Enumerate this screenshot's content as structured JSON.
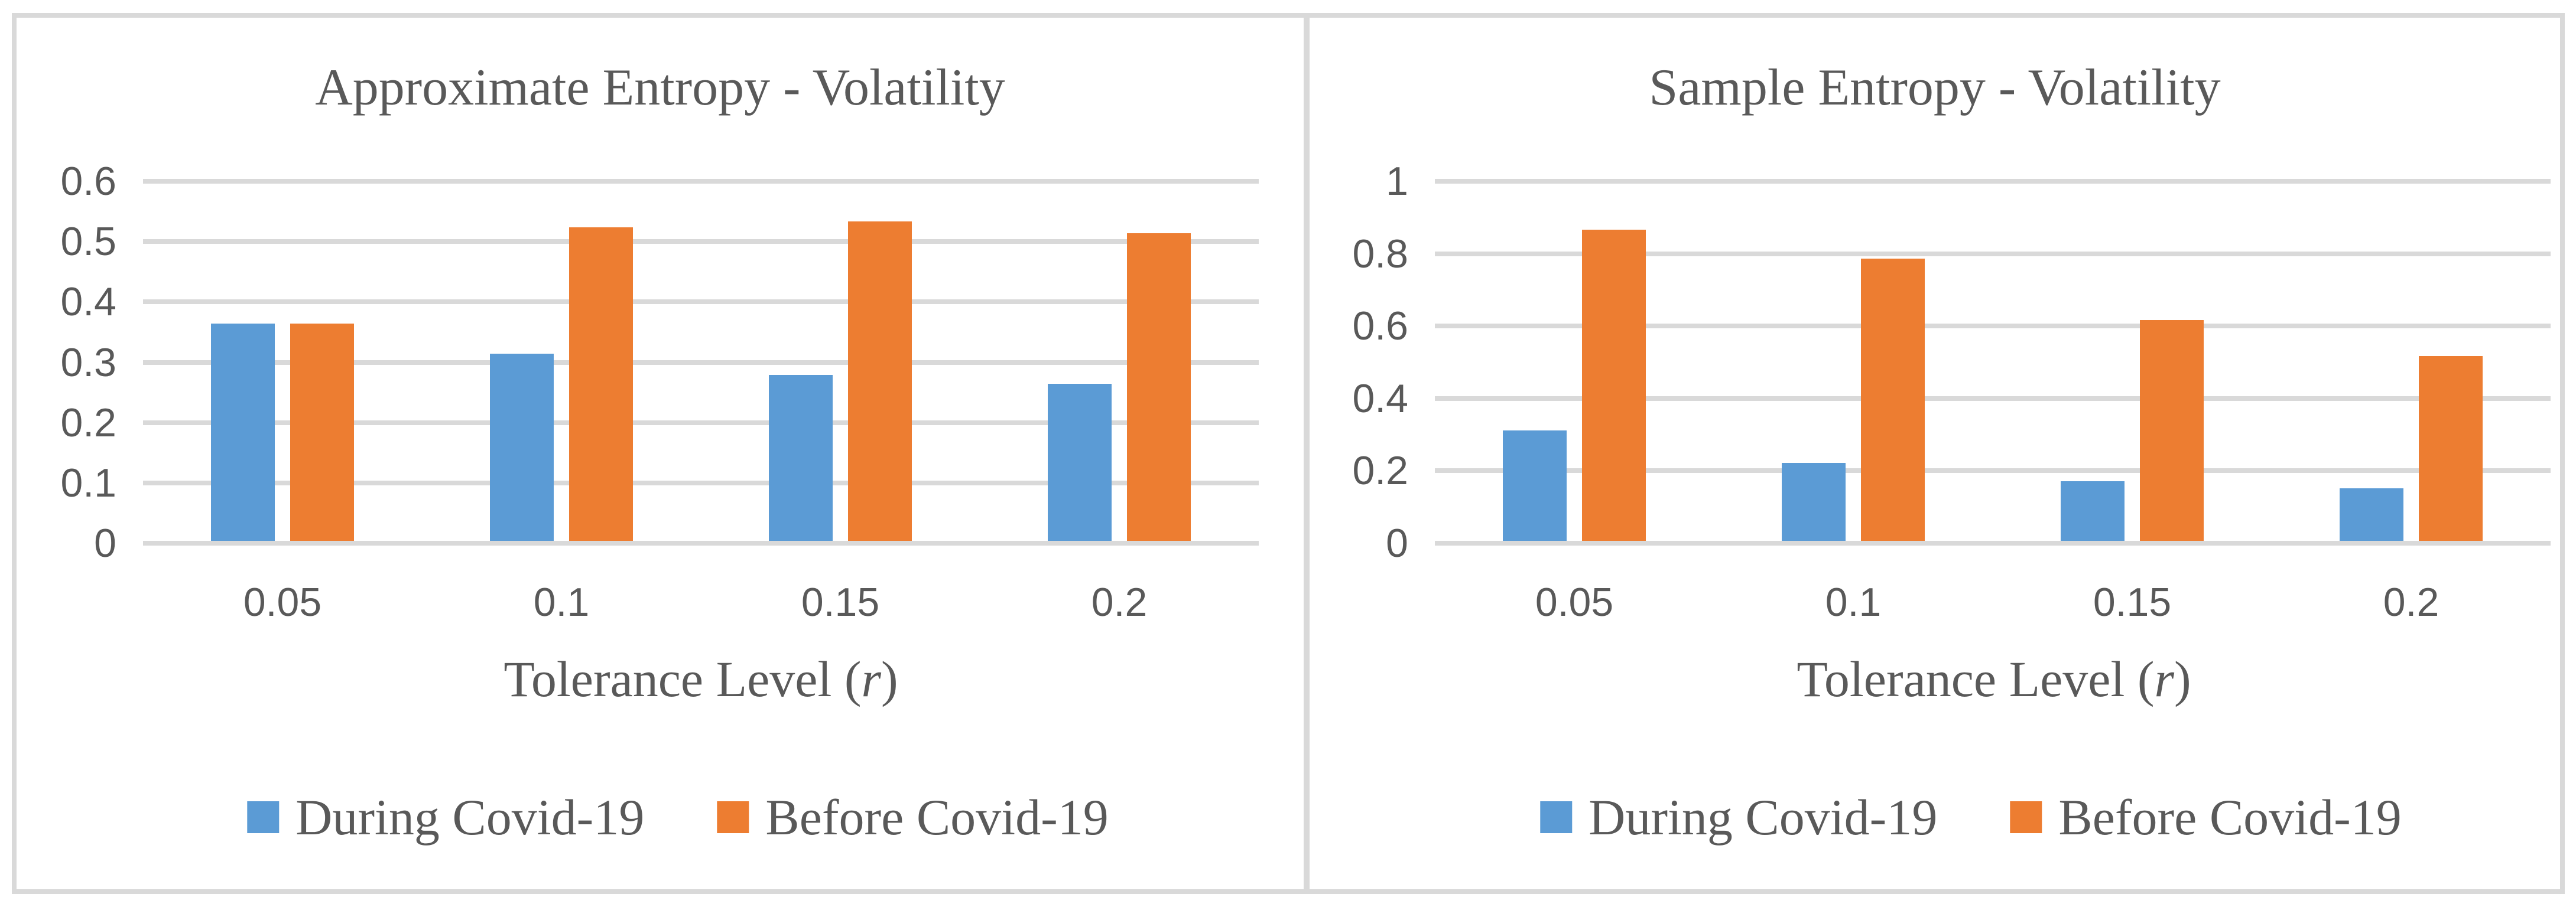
{
  "figure": {
    "colors": {
      "series_blue": "#5B9BD5",
      "series_orange": "#ED7D31",
      "text": "#595959",
      "grid": "#D9D9D9"
    }
  },
  "chart_data": [
    {
      "type": "bar",
      "title": "Approximate Entropy - Volatility",
      "categories": [
        "0.05",
        "0.1",
        "0.15",
        "0.2"
      ],
      "series": [
        {
          "name": "During Covid-19",
          "color_key": "series_blue",
          "values": [
            0.36,
            0.31,
            0.275,
            0.26
          ]
        },
        {
          "name": "Before Covid-19",
          "color_key": "series_orange",
          "values": [
            0.36,
            0.52,
            0.53,
            0.51
          ]
        }
      ],
      "xlabel": "Tolerance Level (r)",
      "xlabel_parts": {
        "pre": "Tolerance Level (",
        "var": "r",
        "post": ")"
      },
      "ylabel": "",
      "ylim": [
        0,
        0.6
      ],
      "yticks": [
        "0",
        "0.1",
        "0.2",
        "0.3",
        "0.4",
        "0.5",
        "0.6"
      ],
      "grid": true,
      "legend_position": "bottom"
    },
    {
      "type": "bar",
      "title": "Sample Entropy - Volatility",
      "categories": [
        "0.05",
        "0.1",
        "0.15",
        "0.2"
      ],
      "series": [
        {
          "name": "During Covid-19",
          "color_key": "series_blue",
          "values": [
            0.305,
            0.215,
            0.165,
            0.145
          ]
        },
        {
          "name": "Before Covid-19",
          "color_key": "series_orange",
          "values": [
            0.86,
            0.78,
            0.61,
            0.51
          ]
        }
      ],
      "xlabel": "Tolerance Level (r)",
      "xlabel_parts": {
        "pre": "Tolerance Level (",
        "var": "r",
        "post": ")"
      },
      "ylabel": "",
      "ylim": [
        0,
        1
      ],
      "yticks": [
        "0",
        "0.2",
        "0.4",
        "0.6",
        "0.8",
        "1"
      ],
      "grid": true,
      "legend_position": "bottom"
    }
  ]
}
